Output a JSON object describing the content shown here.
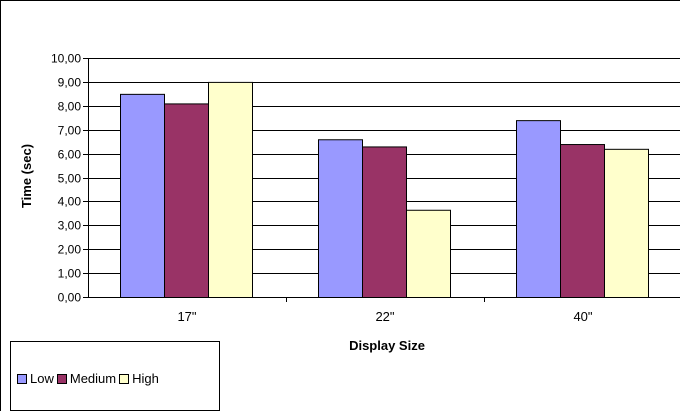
{
  "chart_data": {
    "type": "bar",
    "title": "",
    "xlabel": "Display Size",
    "ylabel": "Time (sec)",
    "categories": [
      "17\"",
      "22\"",
      "40\""
    ],
    "ylim": [
      0,
      10
    ],
    "yticks": [
      "0,00",
      "1,00",
      "2,00",
      "3,00",
      "4,00",
      "5,00",
      "6,00",
      "7,00",
      "8,00",
      "9,00",
      "10,00"
    ],
    "grid": true,
    "legend_position": "bottom-left",
    "series": [
      {
        "name": "Low",
        "color": "#9999ff",
        "values": [
          8.5,
          6.6,
          7.4
        ]
      },
      {
        "name": "Medium",
        "color": "#993366",
        "values": [
          8.1,
          6.3,
          6.4
        ]
      },
      {
        "name": "High",
        "color": "#ffffcc",
        "values": [
          9.0,
          3.65,
          6.2
        ]
      }
    ]
  }
}
